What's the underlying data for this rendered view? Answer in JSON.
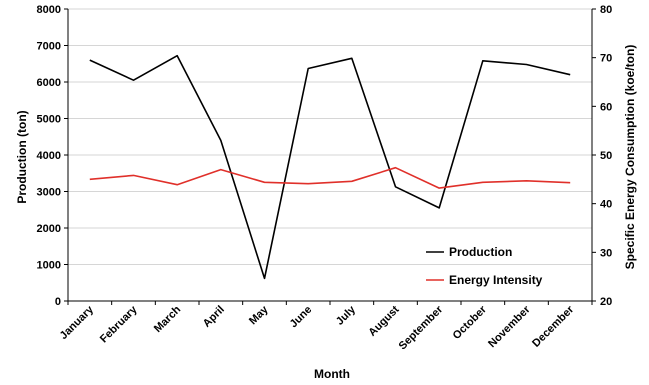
{
  "chart_data": {
    "type": "line",
    "xlabel": "Month",
    "ylabel_left": "Production (ton)",
    "ylabel_right": "Specific Energy Consumption (koe/ton)",
    "categories": [
      "January",
      "February",
      "March",
      "April",
      "May",
      "June",
      "July",
      "August",
      "September",
      "October",
      "November",
      "December"
    ],
    "y_left_range": [
      0,
      8000
    ],
    "y_left_ticks": [
      "0",
      "1000",
      "2000",
      "3000",
      "4000",
      "5000",
      "6000",
      "7000",
      "8000"
    ],
    "y_right_range": [
      20,
      80
    ],
    "y_right_ticks": [
      "20",
      "30",
      "40",
      "50",
      "60",
      "70",
      "80"
    ],
    "grid": "horizontal",
    "legend_position": "bottom-right",
    "series": [
      {
        "name": "Production",
        "axis": "left",
        "color": "#000000",
        "values": [
          6600,
          6050,
          6720,
          4400,
          620,
          6370,
          6650,
          3130,
          2550,
          6580,
          6480,
          6200
        ]
      },
      {
        "name": "Energy Intensity",
        "axis": "right",
        "color": "#e0302a",
        "values": [
          45.0,
          45.8,
          43.9,
          47.0,
          44.4,
          44.1,
          44.6,
          47.4,
          43.2,
          44.4,
          44.7,
          44.3
        ]
      }
    ]
  }
}
